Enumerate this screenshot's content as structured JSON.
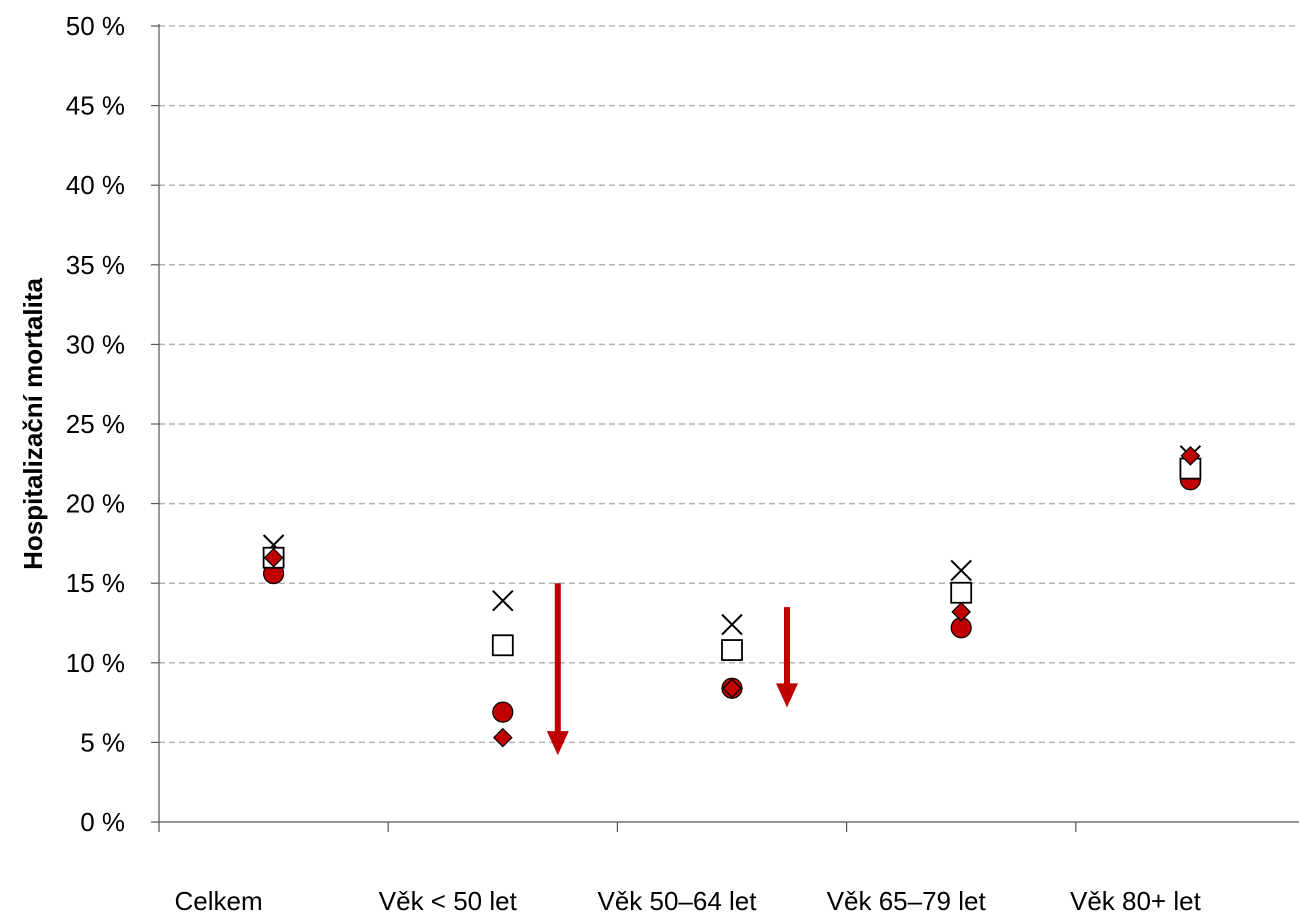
{
  "chart_data": {
    "type": "scatter",
    "title": "",
    "xlabel": "",
    "ylabel": "Hospitalizační mortalita",
    "ylim": [
      0,
      50
    ],
    "y_ticks": [
      0,
      5,
      10,
      15,
      20,
      25,
      30,
      35,
      40,
      45,
      50
    ],
    "y_tick_labels": [
      "0 %",
      "5 %",
      "10 %",
      "15 %",
      "20 %",
      "25 %",
      "30 %",
      "35 %",
      "40 %",
      "45 %",
      "50 %"
    ],
    "grid": "horizontal dashed",
    "legend": "none",
    "categories": [
      "Celkem",
      "Věk < 50 let",
      "Věk 50–64 let",
      "Věk 65–79 let",
      "Věk 80+ let"
    ],
    "series": [
      {
        "marker": "x",
        "color": "#000000",
        "values": [
          17.4,
          13.9,
          12.4,
          15.8,
          23.0
        ]
      },
      {
        "marker": "square",
        "color": "#ffffff",
        "values": [
          16.6,
          11.1,
          10.8,
          14.4,
          22.2
        ]
      },
      {
        "marker": "diamond",
        "color": "#c00000",
        "values": [
          16.6,
          5.3,
          8.4,
          13.2,
          23.0
        ]
      },
      {
        "marker": "circle",
        "color": "#c00000",
        "values": [
          15.6,
          6.9,
          8.4,
          12.2,
          21.5
        ]
      }
    ],
    "arrows": [
      {
        "category": "Věk < 50 let",
        "from": 15.0,
        "to": 4.2,
        "color": "#c00000"
      },
      {
        "category": "Věk 50–64 let",
        "from": 13.5,
        "to": 7.2,
        "color": "#c00000"
      }
    ]
  }
}
